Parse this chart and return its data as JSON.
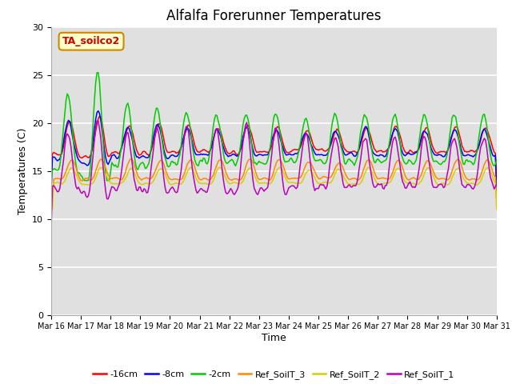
{
  "title": "Alfalfa Forerunner Temperatures",
  "xlabel": "Time",
  "ylabel": "Temperatures (C)",
  "ylim": [
    0,
    30
  ],
  "yticks": [
    0,
    5,
    10,
    15,
    20,
    25,
    30
  ],
  "xlim": [
    0,
    360
  ],
  "background_color": "#e0e0e0",
  "outer_background": "#ffffff",
  "annotation_text": "TA_soilco2",
  "annotation_facecolor": "#ffffcc",
  "annotation_edgecolor": "#cc8800",
  "annotation_textcolor": "#cc0000",
  "series_colors": [
    "#ff0000",
    "#0000ff",
    "#00cc00",
    "#ff8800",
    "#ddcc00",
    "#bb00bb"
  ],
  "series_labels": [
    "-16cm",
    "-8cm",
    "-2cm",
    "Ref_SoilT_3",
    "Ref_SoilT_2",
    "Ref_SoilT_1"
  ],
  "xtick_labels": [
    "Mar 16",
    "Mar 17",
    "Mar 18",
    "Mar 19",
    "Mar 20",
    "Mar 21",
    "Mar 22",
    "Mar 23",
    "Mar 24",
    "Mar 25",
    "Mar 26",
    "Mar 27",
    "Mar 28",
    "Mar 29",
    "Mar 30",
    "Mar 31"
  ],
  "xtick_positions": [
    0,
    24,
    48,
    72,
    96,
    120,
    144,
    168,
    192,
    216,
    240,
    264,
    288,
    312,
    336,
    360
  ],
  "linewidth": 1.1,
  "title_fontsize": 12,
  "tick_fontsize": 7,
  "legend_fontsize": 8
}
